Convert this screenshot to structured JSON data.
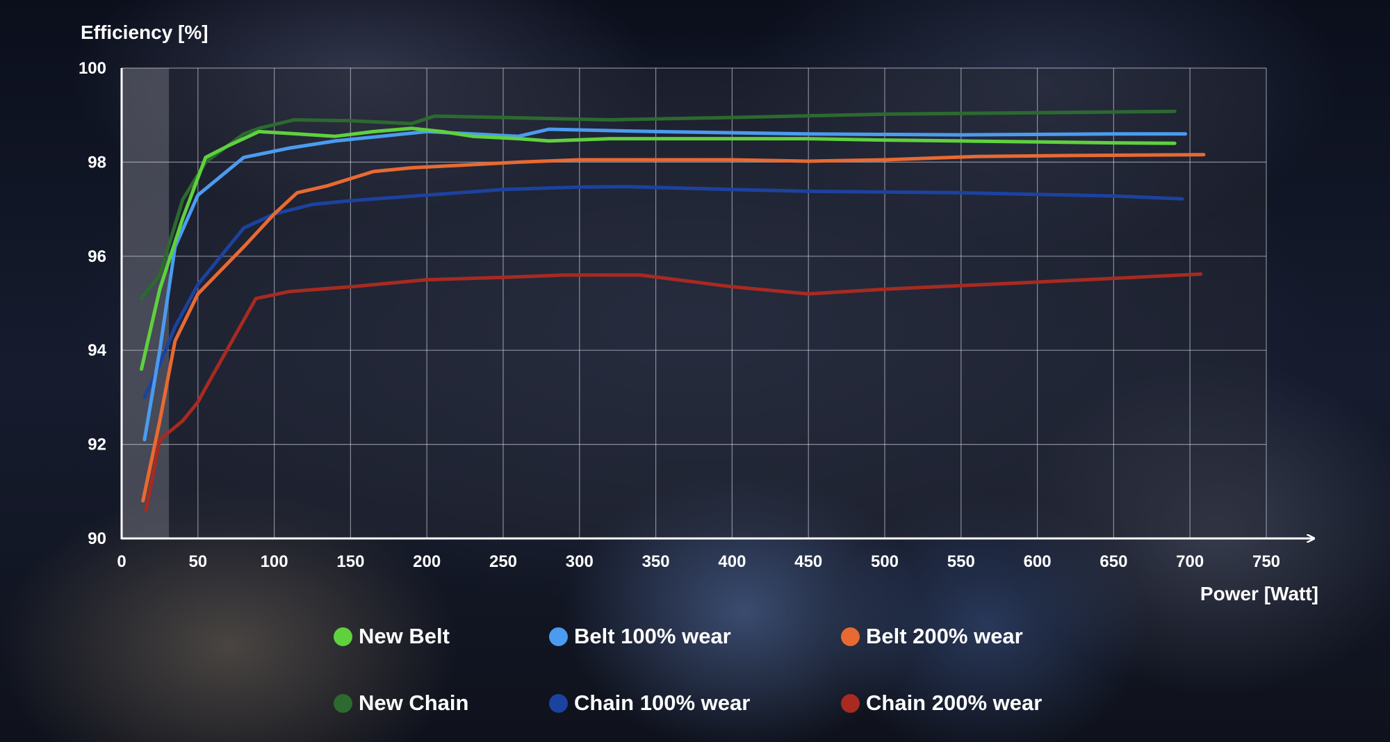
{
  "chart_data": {
    "type": "line",
    "title": "",
    "xlabel": "Power [Watt]",
    "ylabel": "Efficiency [%]",
    "xlim": [
      0,
      750
    ],
    "ylim": [
      90,
      100
    ],
    "xticks": [
      0,
      50,
      100,
      150,
      200,
      250,
      300,
      350,
      400,
      450,
      500,
      550,
      600,
      650,
      700,
      750
    ],
    "yticks": [
      90,
      92,
      94,
      96,
      98,
      100
    ],
    "grid": true,
    "shaded_region": {
      "x": [
        0,
        31
      ],
      "note": "low-power region highlight"
    },
    "legend_position": "bottom",
    "series": [
      {
        "name": "New Belt",
        "color": "#5fd13e",
        "x": [
          13,
          25,
          40,
          55,
          70,
          90,
          115,
          140,
          165,
          190,
          210,
          230,
          260,
          280,
          320,
          350,
          400,
          450,
          500,
          550,
          600,
          650,
          690
        ],
        "y": [
          93.6,
          95.3,
          96.8,
          98.1,
          98.35,
          98.65,
          98.6,
          98.55,
          98.65,
          98.72,
          98.65,
          98.55,
          98.5,
          98.45,
          98.5,
          98.5,
          98.5,
          98.5,
          98.47,
          98.45,
          98.43,
          98.41,
          98.4
        ]
      },
      {
        "name": "Belt 100% wear",
        "color": "#4b9bf0",
        "x": [
          15,
          25,
          35,
          50,
          80,
          110,
          140,
          170,
          200,
          230,
          260,
          280,
          350,
          450,
          550,
          650,
          697
        ],
        "y": [
          92.1,
          94.0,
          96.2,
          97.3,
          98.1,
          98.3,
          98.45,
          98.55,
          98.65,
          98.6,
          98.55,
          98.7,
          98.65,
          98.6,
          98.58,
          98.6,
          98.6
        ]
      },
      {
        "name": "Belt 200% wear",
        "color": "#e86a32",
        "x": [
          14,
          25,
          35,
          50,
          80,
          100,
          115,
          135,
          165,
          190,
          220,
          260,
          300,
          350,
          400,
          450,
          500,
          560,
          620,
          709
        ],
        "y": [
          90.8,
          92.5,
          94.2,
          95.2,
          96.2,
          96.9,
          97.35,
          97.5,
          97.8,
          97.88,
          97.93,
          98.0,
          98.05,
          98.05,
          98.05,
          98.02,
          98.05,
          98.12,
          98.14,
          98.16
        ]
      },
      {
        "name": "New Chain",
        "color": "#2c6a2f",
        "x": [
          13,
          25,
          40,
          55,
          80,
          90,
          113,
          150,
          190,
          205,
          250,
          320,
          400,
          500,
          600,
          690
        ],
        "y": [
          95.1,
          95.6,
          97.2,
          98.0,
          98.6,
          98.72,
          98.9,
          98.88,
          98.82,
          98.98,
          98.95,
          98.9,
          98.95,
          99.02,
          99.05,
          99.08
        ]
      },
      {
        "name": "Chain 100% wear",
        "color": "#1c42a0",
        "x": [
          15,
          25,
          35,
          50,
          80,
          100,
          125,
          150,
          200,
          250,
          300,
          330,
          400,
          450,
          550,
          650,
          695
        ],
        "y": [
          93.0,
          93.7,
          94.5,
          95.4,
          96.6,
          96.9,
          97.1,
          97.18,
          97.3,
          97.42,
          97.47,
          97.48,
          97.42,
          97.38,
          97.35,
          97.28,
          97.22
        ]
      },
      {
        "name": "Chain 200% wear",
        "color": "#a82a20",
        "x": [
          16,
          25,
          40,
          50,
          55,
          88,
          110,
          150,
          200,
          250,
          290,
          340,
          400,
          450,
          500,
          600,
          707
        ],
        "y": [
          90.6,
          92.1,
          92.5,
          92.9,
          93.2,
          95.1,
          95.25,
          95.35,
          95.5,
          95.55,
          95.6,
          95.6,
          95.35,
          95.2,
          95.3,
          95.45,
          95.62
        ]
      }
    ]
  }
}
